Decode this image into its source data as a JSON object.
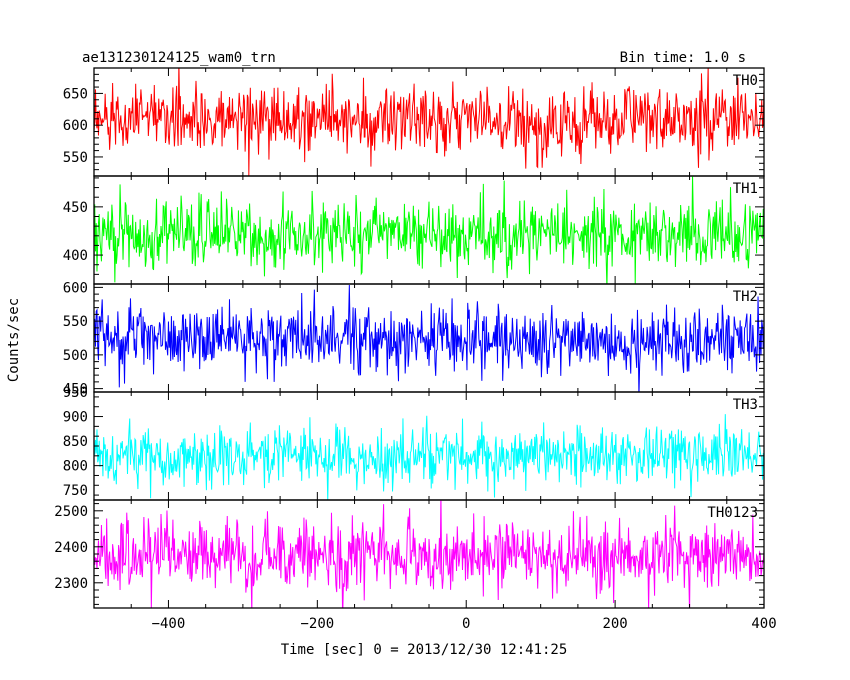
{
  "header": {
    "title": "ae131230124125_wam0_trn",
    "bin_time": "Bin time: 1.0 s"
  },
  "axes": {
    "ylabel": "Counts/sec",
    "xlabel": "Time [sec] 0 = 2013/12/30 12:41:25"
  },
  "chart_data": {
    "type": "line",
    "title": "ae131230124125_wam0_trn",
    "subtitle": "Bin time: 1.0 s",
    "xlabel": "Time [sec] 0 = 2013/12/30 12:41:25",
    "ylabel": "Counts/sec",
    "xlim": [
      -500,
      400
    ],
    "x_ticks": [
      -400,
      -200,
      0,
      200,
      400
    ],
    "x_step": 1.0,
    "grid": false,
    "panels": [
      {
        "name": "TH0",
        "color": "#ff0000",
        "ylim": [
          520,
          690
        ],
        "y_ticks": [
          550,
          600,
          650
        ],
        "series": {
          "mean": 610,
          "noise_sd": 26,
          "x_range": [
            -500,
            400
          ]
        }
      },
      {
        "name": "TH1",
        "color": "#00ff00",
        "ylim": [
          370,
          482
        ],
        "y_ticks": [
          400,
          450
        ],
        "series": {
          "mean": 420,
          "noise_sd": 18,
          "x_range": [
            -500,
            400
          ]
        }
      },
      {
        "name": "TH2",
        "color": "#0000ff",
        "ylim": [
          445,
          605
        ],
        "y_ticks": [
          450,
          500,
          550,
          600
        ],
        "series": {
          "mean": 525,
          "noise_sd": 24,
          "x_range": [
            -500,
            400
          ]
        }
      },
      {
        "name": "TH3",
        "color": "#00ffff",
        "ylim": [
          730,
          950
        ],
        "y_ticks": [
          750,
          800,
          850,
          900,
          950
        ],
        "series": {
          "mean": 820,
          "noise_sd": 32,
          "x_range": [
            -500,
            400
          ]
        }
      },
      {
        "name": "TH0123",
        "color": "#ff00ff",
        "ylim": [
          2230,
          2530
        ],
        "y_ticks": [
          2300,
          2400,
          2500
        ],
        "series": {
          "mean": 2375,
          "noise_sd": 50,
          "x_range": [
            -500,
            400
          ]
        }
      }
    ]
  }
}
